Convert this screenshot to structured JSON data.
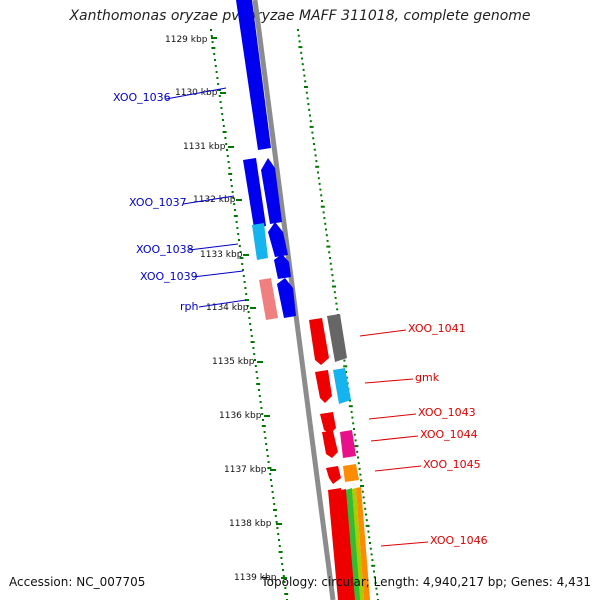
{
  "title": "Xanthomonas oryzae pv. oryzae MAFF 311018, complete genome",
  "footer": {
    "accession": "Accession: NC_007705",
    "topology": "Topology: circular; Length: 4,940,217 bp; Genes: 4,431"
  },
  "colors": {
    "blue": "#0000ee",
    "lightblue": "#15b4ee",
    "pink": "#f08080",
    "red": "#ee0000",
    "gray": "#666666",
    "orange": "#ff8c00",
    "magenta": "#e8118a",
    "green": "#33bb33",
    "olive": "#aacc00",
    "backbone": "#8c8c8c",
    "gc_dots": "#007700",
    "label_left": "#0000cc",
    "label_right": "#dd0000"
  },
  "ruler_ticks": [
    "1129 kbp",
    "1130 kbp",
    "1131 kbp",
    "1132 kbp",
    "1133 kbp",
    "1134 kbp",
    "1135 kbp",
    "1136 kbp",
    "1137 kbp",
    "1138 kbp",
    "1139 kbp"
  ],
  "left_gene_labels": [
    "XOO_1036",
    "XOO_1037",
    "XOO_1038",
    "XOO_1039",
    "rph"
  ],
  "right_gene_labels": [
    "XOO_1041",
    "gmk",
    "XOO_1043",
    "XOO_1044",
    "XOO_1045",
    "XOO_1046"
  ]
}
